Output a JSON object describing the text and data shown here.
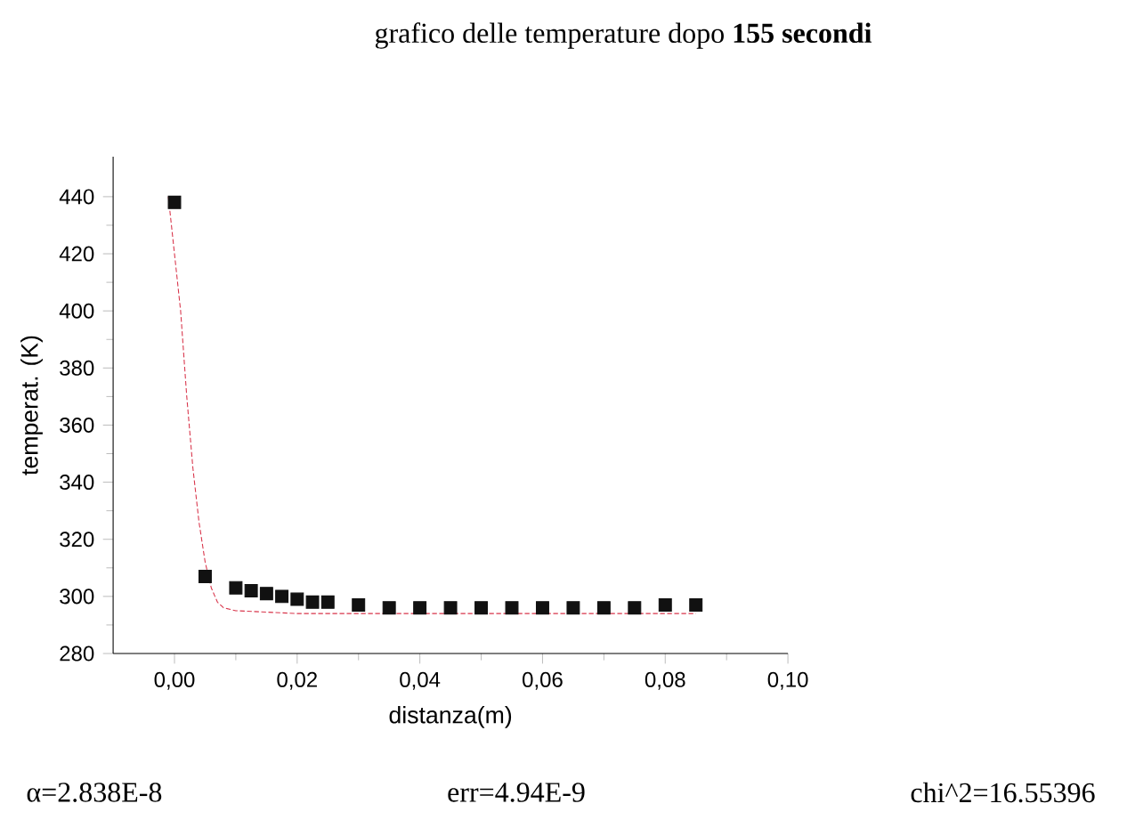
{
  "chart_data": {
    "type": "scatter",
    "title": "grafico delle temperature dopo **155 secondi**",
    "xlabel": "distanza(m)",
    "ylabel": "temperat. (K)",
    "xlim": [
      -0.01,
      0.1
    ],
    "ylim": [
      280,
      454
    ],
    "xticks": [
      {
        "value": 0,
        "label": "0,00"
      },
      {
        "value": 0.02,
        "label": "0,02"
      },
      {
        "value": 0.04,
        "label": "0,04"
      },
      {
        "value": 0.06,
        "label": "0,06"
      },
      {
        "value": 0.08,
        "label": "0,08"
      },
      {
        "value": 0.1,
        "label": "0,10"
      }
    ],
    "yticks": [
      280,
      300,
      320,
      340,
      360,
      380,
      400,
      420,
      440
    ],
    "series": [
      {
        "marker": "square",
        "color": "#111111",
        "x": [
          0,
          0.005,
          0.01,
          0.0125,
          0.015,
          0.0175,
          0.02,
          0.0225,
          0.025,
          0.03,
          0.035,
          0.04,
          0.045,
          0.05,
          0.055,
          0.06,
          0.065,
          0.07,
          0.075,
          0.08,
          0.085
        ],
        "values": [
          438,
          307,
          303,
          302,
          301,
          300,
          299,
          298,
          298,
          297,
          296,
          296,
          296,
          296,
          296,
          296,
          296,
          296,
          296,
          297,
          297
        ]
      },
      {
        "type": "line",
        "line_style": "dashed",
        "color": "#d8344a",
        "x": [
          -0.001,
          0.001,
          0.002,
          0.003,
          0.004,
          0.005,
          0.006,
          0.007,
          0.008,
          0.01,
          0.02,
          0.085
        ],
        "values": [
          440,
          400,
          370,
          345,
          326,
          312,
          303,
          298,
          296,
          295,
          294,
          294
        ]
      }
    ],
    "annotations": [
      "α=2.838E-8",
      "err=4.94E-9",
      "chi^2=16.55396"
    ]
  }
}
